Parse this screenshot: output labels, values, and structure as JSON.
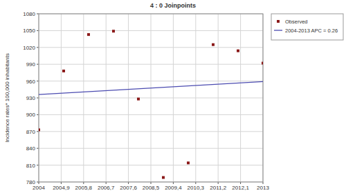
{
  "chart_data": {
    "type": "scatter",
    "title": "4 : 0 Joinpoints",
    "y_label": "Incidence rates* 100,000 inhabitants",
    "x": [
      2004,
      2005,
      2006,
      2007,
      2008,
      2009,
      2010,
      2011,
      2012,
      2013
    ],
    "series": [
      {
        "name": "Observed",
        "type": "scatter",
        "marker": "square",
        "color": "#8b1a1a",
        "values": [
          873,
          978,
          1043,
          1049,
          928,
          788,
          814,
          1025,
          1014,
          992
        ]
      },
      {
        "name": "2004-2013 APC = 0.26",
        "type": "line",
        "line_style": "solid",
        "color": "#4b4bb0",
        "x": [
          2004,
          2013
        ],
        "values": [
          936,
          959
        ]
      }
    ],
    "xlim": [
      2004,
      2013
    ],
    "xticks": [
      2004,
      {
        "value": 2004.9,
        "label": "2004,9"
      },
      {
        "value": 2005.8,
        "label": "2005,8"
      },
      {
        "value": 2006.7,
        "label": "2006,7"
      },
      {
        "value": 2007.6,
        "label": "2007,6"
      },
      {
        "value": 2008.5,
        "label": "2008,5"
      },
      {
        "value": 2009.4,
        "label": "2009,4"
      },
      {
        "value": 2010.3,
        "label": "2010,3"
      },
      {
        "value": 2011.2,
        "label": "2011,2"
      },
      {
        "value": 2012.1,
        "label": "2012,1"
      },
      2013
    ],
    "ylim": [
      780,
      1080
    ],
    "yticks": [
      780,
      810,
      840,
      870,
      900,
      930,
      960,
      990,
      1020,
      1050,
      1080
    ],
    "grid": true,
    "legend": "top-right"
  }
}
